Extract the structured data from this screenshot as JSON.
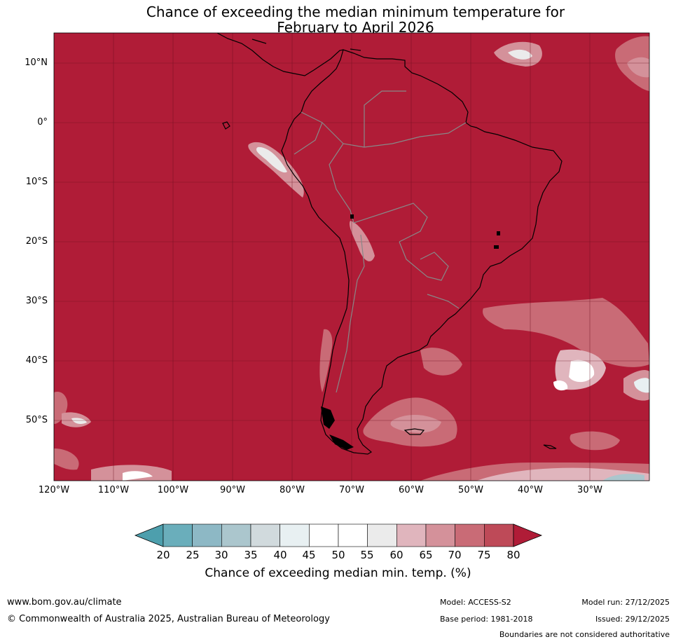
{
  "title": {
    "line1": "Chance of exceeding the median minimum temperature for",
    "line2": "February to April 2026"
  },
  "axes": {
    "lat_labels": [
      "10°N",
      "0°",
      "10°S",
      "20°S",
      "30°S",
      "40°S",
      "50°S"
    ],
    "lon_labels": [
      "120°W",
      "110°W",
      "100°W",
      "90°W",
      "80°W",
      "70°W",
      "60°W",
      "50°W",
      "40°W",
      "30°W"
    ]
  },
  "map_extent": {
    "lon_range": [
      -120,
      -20
    ],
    "lat_range": [
      -60,
      15
    ]
  },
  "colorbar": {
    "ticks": [
      "20",
      "25",
      "30",
      "35",
      "40",
      "45",
      "50",
      "55",
      "60",
      "65",
      "70",
      "75",
      "80"
    ],
    "colors": [
      "#4d9fad",
      "#6aaebb",
      "#8db8c5",
      "#abc6cd",
      "#d1dadd",
      "#e8f0f2",
      "#ffffff",
      "#ffffff",
      "#ebebeb",
      "#e0b5bd",
      "#d4919a",
      "#c96b76",
      "#be4a58"
    ],
    "low_color": "#4d9fad",
    "high_color": "#b01c37",
    "label": "Chance of exceeding median min. temp. (%)"
  },
  "footer": {
    "url": "www.bom.gov.au/climate",
    "copyright": "© Commonwealth of Australia 2025, Australian Bureau of Meteorology",
    "model": "Model: ACCESS-S2",
    "base_period": "Base period: 1981-2018",
    "model_run": "Model run: 27/12/2025",
    "issued": "Issued: 29/12/2025",
    "disclaimer": "Boundaries are not considered authoritative"
  }
}
